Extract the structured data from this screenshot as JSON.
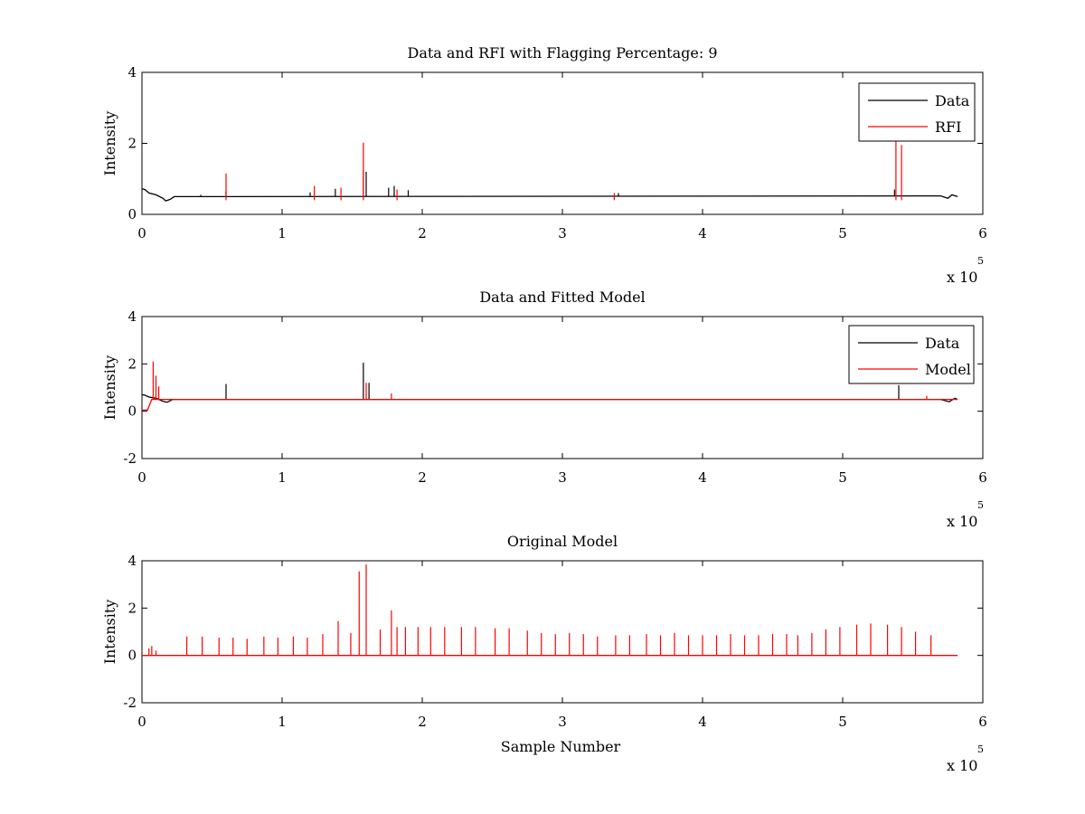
{
  "chart_data": [
    {
      "id": "p1",
      "type": "line",
      "title": "Data and RFI with Flagging Percentage: 9",
      "xlabel": "",
      "ylabel": "Intensity",
      "xlim": [
        0,
        6
      ],
      "ylim": [
        0,
        4
      ],
      "xticks": [
        "0",
        "1",
        "2",
        "3",
        "4",
        "5",
        "6"
      ],
      "yticks": [
        "0",
        "2",
        "4"
      ],
      "x_exponent": "x 10",
      "x_exponent_power": "5",
      "legend": {
        "position": "top-right",
        "entries": [
          {
            "name": "Data",
            "color": "#000000"
          },
          {
            "name": "RFI",
            "color": "#ff0000"
          }
        ]
      },
      "series": [
        {
          "name": "Data",
          "color": "#000000",
          "baseline": 0.5,
          "points": [
            [
              0,
              0.72
            ],
            [
              0.02,
              0.7
            ],
            [
              0.05,
              0.6
            ],
            [
              0.1,
              0.55
            ],
            [
              0.15,
              0.45
            ],
            [
              0.17,
              0.38
            ],
            [
              0.2,
              0.42
            ],
            [
              0.23,
              0.5
            ],
            [
              5.7,
              0.52
            ],
            [
              5.75,
              0.45
            ],
            [
              5.78,
              0.55
            ],
            [
              5.82,
              0.5
            ]
          ],
          "spikes": [
            [
              0.42,
              0.55
            ],
            [
              0.6,
              0.65
            ],
            [
              1.2,
              0.62
            ],
            [
              1.38,
              0.72
            ],
            [
              1.58,
              1.25
            ],
            [
              1.6,
              1.2
            ],
            [
              1.76,
              0.75
            ],
            [
              1.8,
              0.8
            ],
            [
              1.9,
              0.68
            ],
            [
              3.4,
              0.6
            ],
            [
              5.37,
              0.7
            ]
          ]
        },
        {
          "name": "RFI",
          "color": "#ff0000",
          "baseline": null,
          "spikes": [
            [
              0.6,
              1.15
            ],
            [
              1.23,
              0.8
            ],
            [
              1.42,
              0.75
            ],
            [
              1.58,
              2.02
            ],
            [
              1.82,
              0.7
            ],
            [
              3.37,
              0.6
            ],
            [
              5.38,
              2.1
            ],
            [
              5.42,
              1.95
            ]
          ]
        }
      ]
    },
    {
      "id": "p2",
      "type": "line",
      "title": "Data and Fitted Model",
      "xlabel": "",
      "ylabel": "Intensity",
      "xlim": [
        0,
        6
      ],
      "ylim": [
        -2,
        4
      ],
      "xticks": [
        "0",
        "1",
        "2",
        "3",
        "4",
        "5",
        "6"
      ],
      "yticks": [
        "-2",
        "0",
        "2",
        "4"
      ],
      "x_exponent": "x 10",
      "x_exponent_power": "5",
      "legend": {
        "position": "top-right",
        "entries": [
          {
            "name": "Data",
            "color": "#000000"
          },
          {
            "name": "Model",
            "color": "#ff0000"
          }
        ]
      },
      "series": [
        {
          "name": "Data",
          "color": "#000000",
          "baseline": 0.5,
          "points": [
            [
              0,
              0.7
            ],
            [
              0.02,
              0.68
            ],
            [
              0.05,
              0.6
            ],
            [
              0.1,
              0.55
            ],
            [
              0.15,
              0.42
            ],
            [
              0.18,
              0.38
            ],
            [
              0.22,
              0.5
            ],
            [
              5.7,
              0.5
            ],
            [
              5.76,
              0.4
            ],
            [
              5.8,
              0.55
            ],
            [
              5.82,
              0.5
            ]
          ],
          "spikes": [
            [
              0.6,
              1.15
            ],
            [
              1.58,
              2.05
            ],
            [
              1.62,
              1.2
            ],
            [
              5.4,
              1.1
            ]
          ]
        },
        {
          "name": "Model",
          "color": "#ff0000",
          "baseline": 0.5,
          "points": [
            [
              0,
              0.05
            ],
            [
              0.04,
              0.05
            ],
            [
              0.07,
              0.5
            ],
            [
              5.82,
              0.5
            ]
          ],
          "spikes": [
            [
              0.08,
              2.1
            ],
            [
              0.1,
              1.5
            ],
            [
              0.12,
              1.05
            ],
            [
              1.6,
              1.2
            ],
            [
              1.78,
              0.75
            ],
            [
              5.6,
              0.65
            ]
          ]
        }
      ]
    },
    {
      "id": "p3",
      "type": "line",
      "title": "Original Model",
      "xlabel": "Sample Number",
      "ylabel": "Intensity",
      "xlim": [
        0,
        6
      ],
      "ylim": [
        -2,
        4
      ],
      "xticks": [
        "0",
        "1",
        "2",
        "3",
        "4",
        "5",
        "6"
      ],
      "yticks": [
        "-2",
        "0",
        "2",
        "4"
      ],
      "x_exponent": "x 10",
      "x_exponent_power": "5",
      "legend": null,
      "series": [
        {
          "name": "",
          "color": "#ff0000",
          "baseline": 0,
          "points": [
            [
              0,
              0
            ],
            [
              5.82,
              0
            ]
          ],
          "spikes": [
            [
              0.05,
              0.3
            ],
            [
              0.07,
              0.4
            ],
            [
              0.1,
              0.2
            ],
            [
              0.32,
              0.8
            ],
            [
              0.43,
              0.8
            ],
            [
              0.55,
              0.75
            ],
            [
              0.65,
              0.75
            ],
            [
              0.75,
              0.7
            ],
            [
              0.87,
              0.8
            ],
            [
              0.97,
              0.75
            ],
            [
              1.08,
              0.8
            ],
            [
              1.18,
              0.75
            ],
            [
              1.29,
              0.9
            ],
            [
              1.4,
              1.45
            ],
            [
              1.49,
              0.95
            ],
            [
              1.55,
              3.55
            ],
            [
              1.6,
              3.85
            ],
            [
              1.7,
              1.1
            ],
            [
              1.78,
              1.9
            ],
            [
              1.82,
              1.2
            ],
            [
              1.88,
              1.2
            ],
            [
              1.97,
              1.2
            ],
            [
              2.06,
              1.2
            ],
            [
              2.16,
              1.2
            ],
            [
              2.28,
              1.2
            ],
            [
              2.38,
              1.2
            ],
            [
              2.52,
              1.15
            ],
            [
              2.62,
              1.15
            ],
            [
              2.75,
              1.05
            ],
            [
              2.85,
              0.95
            ],
            [
              2.95,
              0.9
            ],
            [
              3.05,
              0.95
            ],
            [
              3.15,
              0.9
            ],
            [
              3.25,
              0.8
            ],
            [
              3.38,
              0.85
            ],
            [
              3.48,
              0.85
            ],
            [
              3.6,
              0.9
            ],
            [
              3.7,
              0.85
            ],
            [
              3.8,
              0.95
            ],
            [
              3.9,
              0.85
            ],
            [
              4.0,
              0.85
            ],
            [
              4.1,
              0.85
            ],
            [
              4.2,
              0.9
            ],
            [
              4.3,
              0.85
            ],
            [
              4.4,
              0.85
            ],
            [
              4.5,
              0.9
            ],
            [
              4.6,
              0.9
            ],
            [
              4.68,
              0.85
            ],
            [
              4.78,
              0.95
            ],
            [
              4.88,
              1.1
            ],
            [
              4.98,
              1.2
            ],
            [
              5.1,
              1.3
            ],
            [
              5.2,
              1.35
            ],
            [
              5.32,
              1.3
            ],
            [
              5.42,
              1.2
            ],
            [
              5.52,
              1.0
            ],
            [
              5.63,
              0.85
            ]
          ]
        }
      ]
    }
  ]
}
